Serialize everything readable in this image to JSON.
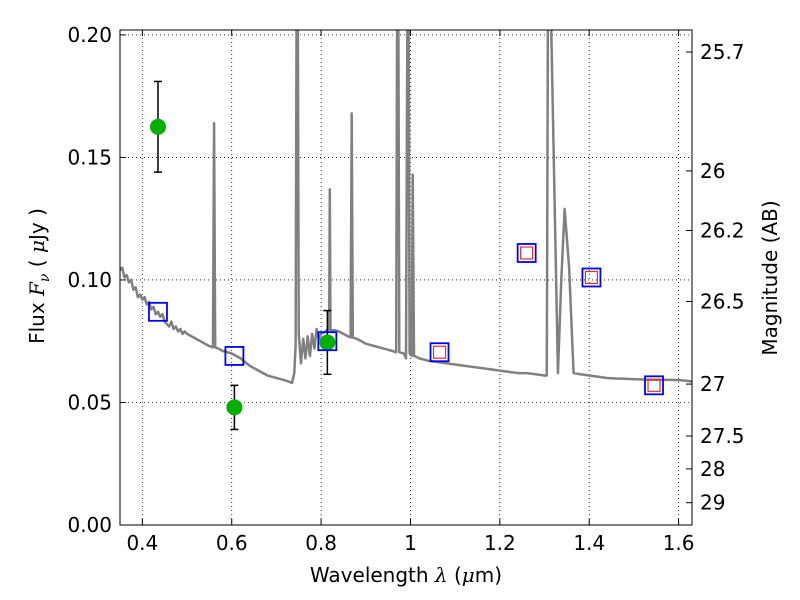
{
  "chart_data": {
    "type": "scatter",
    "xlabel": {
      "prefix": "Wavelength ",
      "symbol": "λ",
      "unit_open": " (",
      "unit_sym": "μ",
      "unit_rest": "m)"
    },
    "ylabel": {
      "prefix": "Flux ",
      "symbol": "F",
      "sub": "ν",
      "unit_open": " ( ",
      "unit_sym": "μ",
      "unit_rest": "Jy )"
    },
    "y2label": "Magnitude (AB)",
    "xlim": [
      0.35,
      1.63
    ],
    "ylim": [
      0.0,
      0.202
    ],
    "grid": true,
    "x_ticks": [
      {
        "value": 0.4,
        "label": "0.4"
      },
      {
        "value": 0.6,
        "label": "0.6"
      },
      {
        "value": 0.8,
        "label": "0.8"
      },
      {
        "value": 1.0,
        "label": "1"
      },
      {
        "value": 1.2,
        "label": "1.2"
      },
      {
        "value": 1.4,
        "label": "1.4"
      },
      {
        "value": 1.6,
        "label": "1.6"
      }
    ],
    "y_ticks": [
      {
        "value": 0.0,
        "label": "0.00"
      },
      {
        "value": 0.05,
        "label": "0.05"
      },
      {
        "value": 0.1,
        "label": "0.10"
      },
      {
        "value": 0.15,
        "label": "0.15"
      },
      {
        "value": 0.2,
        "label": "0.20"
      }
    ],
    "mag_ticks": [
      {
        "label": "25.7",
        "flux": 0.193
      },
      {
        "label": "26",
        "flux": 0.1445
      },
      {
        "label": "26.2",
        "flux": 0.1202
      },
      {
        "label": "26.5",
        "flux": 0.0912
      },
      {
        "label": "27",
        "flux": 0.0575
      },
      {
        "label": "27.5",
        "flux": 0.0363
      },
      {
        "label": "28",
        "flux": 0.0229
      },
      {
        "label": "29",
        "flux": 0.0091
      }
    ],
    "series": [
      {
        "name": "model spectrum",
        "kind": "line",
        "color": "#808080",
        "points": [
          [
            0.35,
            0.104
          ],
          [
            0.355,
            0.105
          ],
          [
            0.36,
            0.101
          ],
          [
            0.365,
            0.102
          ],
          [
            0.37,
            0.099
          ],
          [
            0.375,
            0.1
          ],
          [
            0.38,
            0.096
          ],
          [
            0.385,
            0.097
          ],
          [
            0.39,
            0.093
          ],
          [
            0.395,
            0.094
          ],
          [
            0.4,
            0.092
          ],
          [
            0.405,
            0.093
          ],
          [
            0.41,
            0.09
          ],
          [
            0.415,
            0.091
          ],
          [
            0.42,
            0.088
          ],
          [
            0.425,
            0.089
          ],
          [
            0.43,
            0.086
          ],
          [
            0.435,
            0.087
          ],
          [
            0.44,
            0.085
          ],
          [
            0.445,
            0.086
          ],
          [
            0.45,
            0.083
          ],
          [
            0.455,
            0.082
          ],
          [
            0.46,
            0.081
          ],
          [
            0.465,
            0.083
          ],
          [
            0.47,
            0.08
          ],
          [
            0.475,
            0.081
          ],
          [
            0.48,
            0.079
          ],
          [
            0.485,
            0.08
          ],
          [
            0.49,
            0.078
          ],
          [
            0.495,
            0.079
          ],
          [
            0.5,
            0.078
          ],
          [
            0.51,
            0.077
          ],
          [
            0.52,
            0.076
          ],
          [
            0.53,
            0.075
          ],
          [
            0.54,
            0.074
          ],
          [
            0.55,
            0.073
          ],
          [
            0.558,
            0.0725
          ],
          [
            0.5605,
            0.164
          ],
          [
            0.563,
            0.0725
          ],
          [
            0.57,
            0.072
          ],
          [
            0.58,
            0.071
          ],
          [
            0.59,
            0.0705
          ],
          [
            0.6,
            0.07
          ],
          [
            0.62,
            0.068
          ],
          [
            0.64,
            0.065
          ],
          [
            0.66,
            0.063
          ],
          [
            0.68,
            0.061
          ],
          [
            0.7,
            0.06
          ],
          [
            0.72,
            0.059
          ],
          [
            0.735,
            0.058
          ],
          [
            0.74,
            0.062
          ],
          [
            0.743,
            0.073
          ],
          [
            0.745,
            0.203
          ],
          [
            0.748,
            0.203
          ],
          [
            0.75,
            0.078
          ],
          [
            0.755,
            0.066
          ],
          [
            0.76,
            0.076
          ],
          [
            0.765,
            0.068
          ],
          [
            0.77,
            0.077
          ],
          [
            0.775,
            0.069
          ],
          [
            0.78,
            0.078
          ],
          [
            0.785,
            0.072
          ],
          [
            0.79,
            0.08
          ],
          [
            0.795,
            0.076
          ],
          [
            0.8,
            0.078
          ],
          [
            0.81,
            0.079
          ],
          [
            0.815,
            0.08
          ],
          [
            0.818,
            0.0795
          ],
          [
            0.8195,
            0.137
          ],
          [
            0.821,
            0.0795
          ],
          [
            0.83,
            0.0795
          ],
          [
            0.84,
            0.079
          ],
          [
            0.85,
            0.078
          ],
          [
            0.86,
            0.077
          ],
          [
            0.866,
            0.0765
          ],
          [
            0.8685,
            0.168
          ],
          [
            0.871,
            0.0765
          ],
          [
            0.88,
            0.076
          ],
          [
            0.89,
            0.075
          ],
          [
            0.9,
            0.074
          ],
          [
            0.92,
            0.073
          ],
          [
            0.94,
            0.072
          ],
          [
            0.96,
            0.071
          ],
          [
            0.968,
            0.0705
          ],
          [
            0.97,
            0.203
          ],
          [
            0.973,
            0.203
          ],
          [
            0.975,
            0.0705
          ],
          [
            0.985,
            0.07
          ],
          [
            0.99,
            0.068
          ],
          [
            0.993,
            0.203
          ],
          [
            0.996,
            0.203
          ],
          [
            0.998,
            0.07
          ],
          [
            1.003,
            0.069
          ],
          [
            1.005,
            0.143
          ],
          [
            1.008,
            0.069
          ],
          [
            1.02,
            0.068
          ],
          [
            1.04,
            0.067
          ],
          [
            1.06,
            0.0665
          ],
          [
            1.08,
            0.066
          ],
          [
            1.1,
            0.0655
          ],
          [
            1.12,
            0.065
          ],
          [
            1.14,
            0.0645
          ],
          [
            1.16,
            0.064
          ],
          [
            1.18,
            0.0635
          ],
          [
            1.2,
            0.063
          ],
          [
            1.22,
            0.0625
          ],
          [
            1.24,
            0.062
          ],
          [
            1.26,
            0.062
          ],
          [
            1.28,
            0.0615
          ],
          [
            1.3,
            0.061
          ],
          [
            1.305,
            0.061
          ],
          [
            1.3075,
            0.203
          ],
          [
            1.31,
            0.203
          ],
          [
            1.315,
            0.203
          ],
          [
            1.33,
            0.062
          ],
          [
            1.3375,
            0.1
          ],
          [
            1.345,
            0.129
          ],
          [
            1.355,
            0.105
          ],
          [
            1.365,
            0.062
          ],
          [
            1.38,
            0.0615
          ],
          [
            1.4,
            0.061
          ],
          [
            1.42,
            0.0605
          ],
          [
            1.44,
            0.06
          ],
          [
            1.46,
            0.0598
          ],
          [
            1.48,
            0.0597
          ],
          [
            1.5,
            0.0595
          ],
          [
            1.52,
            0.0594
          ],
          [
            1.54,
            0.0592
          ],
          [
            1.56,
            0.0592
          ],
          [
            1.58,
            0.0592
          ],
          [
            1.6,
            0.0591
          ],
          [
            1.62,
            0.0588
          ],
          [
            1.63,
            0.0585
          ]
        ]
      },
      {
        "name": "observed photometry",
        "kind": "points",
        "marker": "circle",
        "color": "#00b000",
        "points": [
          {
            "x": 0.435,
            "y": 0.1625,
            "err": 0.0185
          },
          {
            "x": 0.606,
            "y": 0.048,
            "err": 0.009
          },
          {
            "x": 0.814,
            "y": 0.0745,
            "err": 0.013
          }
        ]
      },
      {
        "name": "model photometry (outer)",
        "kind": "points",
        "marker": "square",
        "color": "#0000ff",
        "points": [
          {
            "x": 0.435,
            "y": 0.087
          },
          {
            "x": 0.606,
            "y": 0.069
          },
          {
            "x": 0.814,
            "y": 0.075
          },
          {
            "x": 1.065,
            "y": 0.0705
          },
          {
            "x": 1.26,
            "y": 0.111
          },
          {
            "x": 1.405,
            "y": 0.101
          },
          {
            "x": 1.545,
            "y": 0.057
          }
        ]
      },
      {
        "name": "model photometry (inner)",
        "kind": "points",
        "marker": "square-small",
        "color": "#e03030",
        "points": [
          {
            "x": 1.065,
            "y": 0.0705
          },
          {
            "x": 1.26,
            "y": 0.111
          },
          {
            "x": 1.405,
            "y": 0.101
          },
          {
            "x": 1.545,
            "y": 0.057
          }
        ]
      }
    ]
  }
}
